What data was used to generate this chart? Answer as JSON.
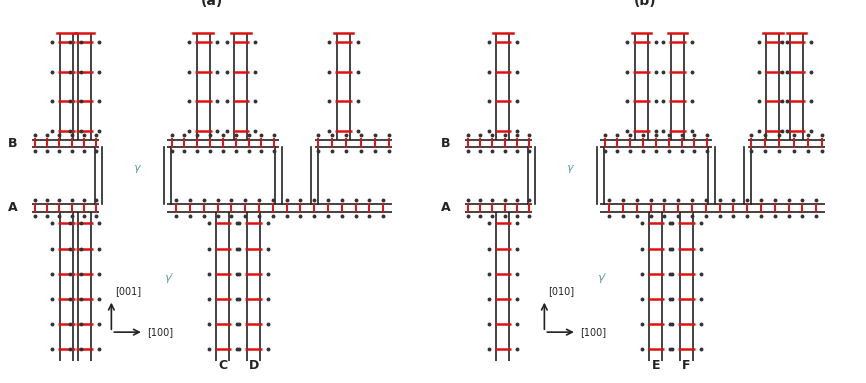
{
  "fig_width": 8.66,
  "fig_height": 3.83,
  "dpi": 100,
  "bg_color": "#ffffff",
  "black_color": "#222222",
  "red_color": "#dd1111",
  "dot_color": "#333333",
  "panel_a_label": "(a)",
  "panel_b_label": "(b)",
  "label_A": "A",
  "label_B": "B",
  "label_C": "C",
  "label_D": "D",
  "label_E": "E",
  "label_F": "F",
  "gamma_label": "γ",
  "gamma_prime_label": "γ′",
  "axis_a_x_label": "[100]",
  "axis_a_y_label": "[001]",
  "axis_b_x_label": "[100]",
  "axis_b_y_label": "[010]",
  "lw_main": 1.2,
  "lw_rung": 1.8,
  "lw_tick": 1.4,
  "dot_ms": 1.8,
  "rung_ms": 2.0
}
